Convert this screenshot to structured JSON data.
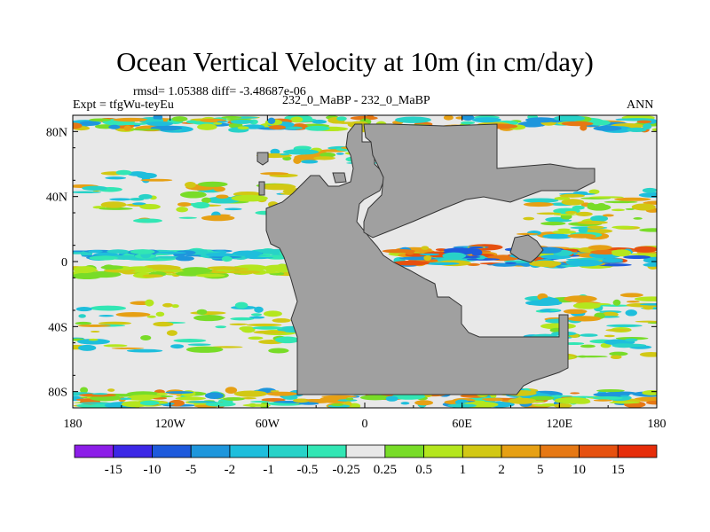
{
  "chart_data": {
    "type": "heatmap",
    "title": "Ocean Vertical Velocity at 10m (in cm/day)",
    "stats_line": "rmsd= 1.05388 diff= -3.48687e-06",
    "experiment_label": "Expt = tfgWu-teyEu",
    "center_label": "232_0_MaBP - 232_0_MaBP",
    "right_label": "ANN",
    "x_tick_labels": [
      "180",
      "120W",
      "60W",
      "0",
      "60E",
      "120E",
      "180"
    ],
    "y_tick_labels": [
      "80N",
      "40N",
      "0",
      "40S",
      "80S"
    ],
    "xlim": [
      -180,
      180
    ],
    "ylim": [
      -90,
      90
    ],
    "colorbar": {
      "labels": [
        "-15",
        "-10",
        "-5",
        "-2",
        "-1",
        "-0.5",
        "-0.25",
        "0.25",
        "0.5",
        "1",
        "2",
        "5",
        "10",
        "15"
      ],
      "colors": [
        "#8c1ee8",
        "#3c28e6",
        "#1e5adc",
        "#1e96dc",
        "#1ebedc",
        "#28d2c8",
        "#32e6b4",
        "#e8e8e8",
        "#78dc28",
        "#b4e61e",
        "#d2c814",
        "#e6a014",
        "#e67814",
        "#e6500f",
        "#e62d0a"
      ]
    },
    "land_color": "#a0a0a0",
    "ocean_background": "#e8e8e8"
  }
}
